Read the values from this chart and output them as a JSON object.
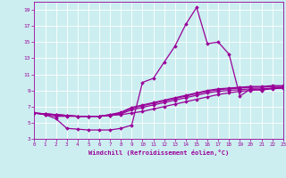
{
  "xlabel": "Windchill (Refroidissement éolien,°C)",
  "xlim": [
    0,
    23
  ],
  "ylim": [
    3,
    20
  ],
  "xticks": [
    0,
    1,
    2,
    3,
    4,
    5,
    6,
    7,
    8,
    9,
    10,
    11,
    12,
    13,
    14,
    15,
    16,
    17,
    18,
    19,
    20,
    21,
    22,
    23
  ],
  "yticks": [
    3,
    5,
    7,
    9,
    11,
    13,
    15,
    17,
    19
  ],
  "bg_color": "#cceef0",
  "line_color": "#990099",
  "line_width": 0.9,
  "marker": "D",
  "marker_size": 1.8,
  "lines": [
    [
      6.2,
      6.0,
      5.8,
      5.8,
      5.8,
      5.8,
      5.8,
      5.9,
      6.0,
      6.2,
      6.4,
      6.7,
      7.0,
      7.3,
      7.6,
      7.9,
      8.2,
      8.5,
      8.7,
      8.9,
      9.0,
      9.1,
      9.2,
      9.3
    ],
    [
      6.2,
      6.0,
      5.5,
      4.3,
      4.2,
      4.1,
      4.1,
      4.1,
      4.3,
      4.7,
      10.0,
      10.5,
      12.5,
      14.5,
      17.2,
      19.3,
      14.8,
      15.0,
      13.5,
      8.3,
      9.2,
      9.0,
      9.3,
      9.4
    ],
    [
      6.2,
      6.1,
      6.0,
      5.9,
      5.8,
      5.8,
      5.8,
      6.0,
      6.2,
      6.8,
      7.1,
      7.4,
      7.7,
      8.0,
      8.3,
      8.6,
      8.9,
      9.1,
      9.2,
      9.3,
      9.4,
      9.4,
      9.5,
      9.5
    ],
    [
      6.2,
      6.1,
      6.0,
      5.9,
      5.8,
      5.8,
      5.8,
      6.0,
      6.3,
      6.9,
      7.2,
      7.5,
      7.8,
      8.1,
      8.4,
      8.7,
      9.0,
      9.2,
      9.3,
      9.4,
      9.5,
      9.5,
      9.6,
      9.6
    ],
    [
      6.2,
      6.1,
      6.0,
      5.9,
      5.8,
      5.8,
      5.8,
      5.9,
      6.1,
      6.6,
      6.9,
      7.2,
      7.5,
      7.8,
      8.1,
      8.4,
      8.7,
      8.9,
      9.0,
      9.1,
      9.2,
      9.2,
      9.3,
      9.3
    ]
  ]
}
